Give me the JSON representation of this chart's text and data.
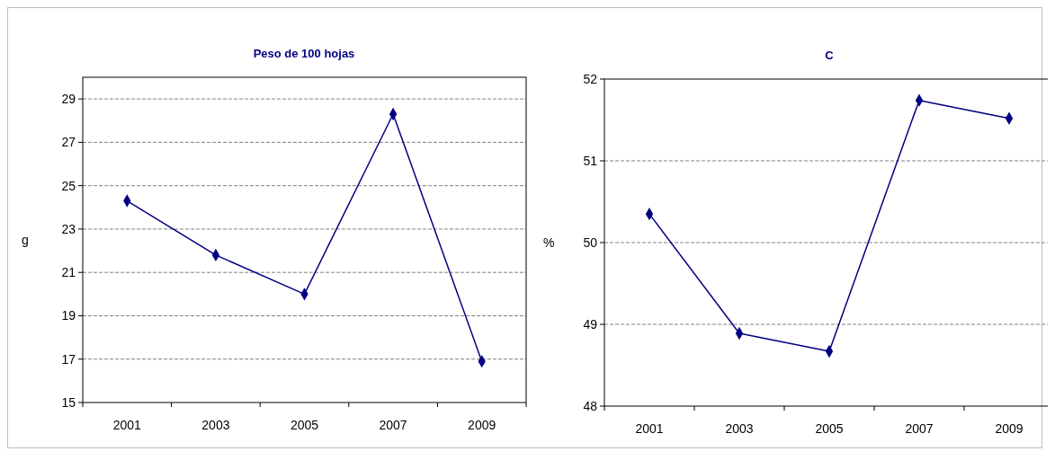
{
  "chart_data": [
    {
      "type": "line",
      "title": "Peso de 100 hojas",
      "ylabel": "g",
      "categories": [
        "2001",
        "2003",
        "2005",
        "2007",
        "2009"
      ],
      "series": [
        {
          "color": "#000080",
          "values": [
            24.3,
            21.8,
            20.0,
            28.3,
            16.9
          ]
        }
      ],
      "ylim": [
        15,
        30
      ],
      "yticks": [
        15,
        17,
        19,
        21,
        23,
        25,
        27,
        29
      ],
      "grid": "y",
      "marker": "diamond",
      "line_style": "solid"
    },
    {
      "type": "line",
      "title": "C",
      "ylabel": "%",
      "categories": [
        "2001",
        "2003",
        "2005",
        "2007",
        "2009"
      ],
      "series": [
        {
          "color": "#000080",
          "values": [
            50.35,
            48.89,
            48.67,
            51.74,
            51.52
          ]
        }
      ],
      "ylim": [
        48,
        52
      ],
      "yticks": [
        48,
        49,
        50,
        51,
        52
      ],
      "grid": "y",
      "marker": "diamond",
      "line_style": "solid"
    }
  ]
}
